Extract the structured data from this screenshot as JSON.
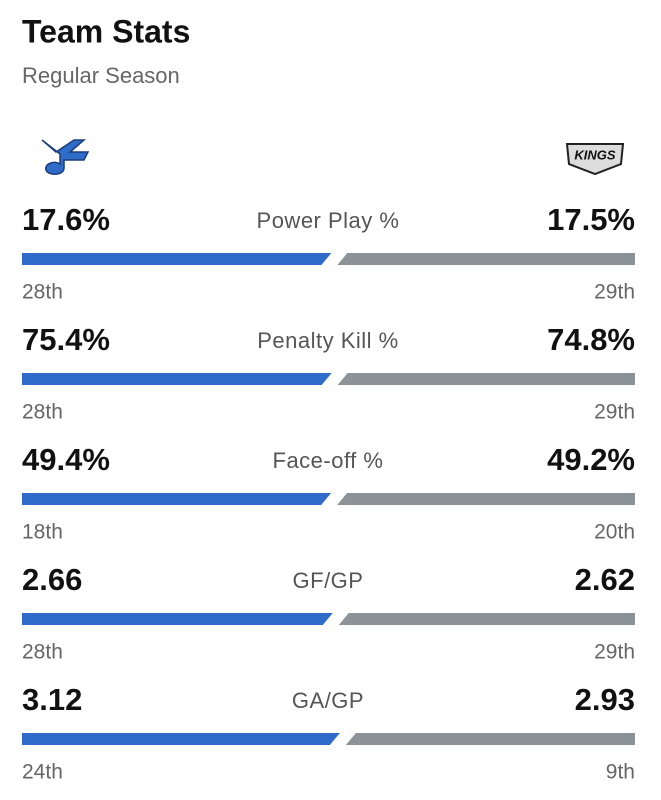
{
  "header": {
    "title": "Team Stats",
    "subtitle": "Regular Season"
  },
  "stats": [
    {
      "label": "Power Play %",
      "home": 17.6,
      "home_label": "17.6%",
      "away": 17.5,
      "away_label": "17.5%",
      "home_rank": "28th",
      "away_rank": "29th"
    },
    {
      "label": "Penalty Kill %",
      "home": 75.4,
      "home_label": "75.4%",
      "away": 74.8,
      "away_label": "74.8%",
      "home_rank": "28th",
      "away_rank": "29th"
    },
    {
      "label": "Face-off %",
      "home": 49.4,
      "home_label": "49.4%",
      "away": 49.2,
      "away_label": "49.2%",
      "home_rank": "18th",
      "away_rank": "20th"
    },
    {
      "label": "GF/GP",
      "home": 2.66,
      "away": 2.62,
      "home_rank": "28th",
      "away_rank": "29th"
    },
    {
      "label": "GA/GP",
      "home": 3.12,
      "away": 2.93,
      "home_rank": "24th",
      "away_rank": "9th"
    }
  ]
}
